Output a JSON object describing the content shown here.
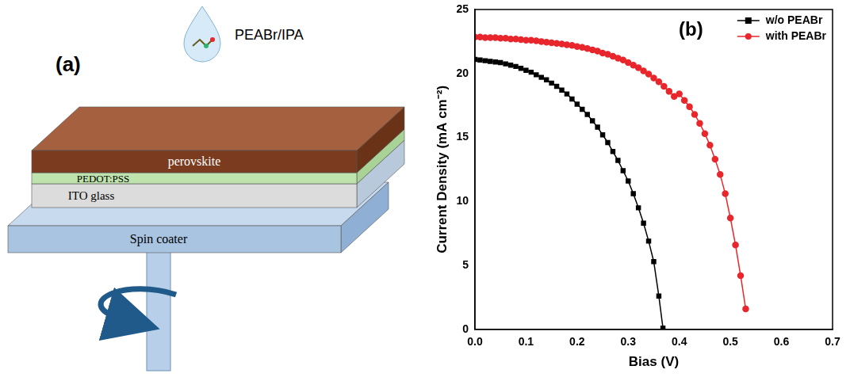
{
  "panel_labels": [
    "(a)",
    "(b)"
  ],
  "diagram": {
    "solution": "PEABr/IPA",
    "layers": [
      "perovskite",
      "PEDOT:PSS",
      "ITO glass"
    ],
    "base": "Spin coater"
  },
  "chart_data": {
    "type": "line",
    "x_label": "Bias (V)",
    "y_label": "Current Density (mA cm⁻²)",
    "xlim": [
      0,
      0.7
    ],
    "xticks": [
      {
        "value": 0,
        "label": "0.0"
      },
      0.1,
      0.2,
      0.3,
      0.4,
      0.5,
      0.6,
      0.7
    ],
    "ylim": [
      0,
      25
    ],
    "yticks": [
      0,
      5,
      10,
      15,
      20,
      25
    ],
    "grid": false,
    "legend": "upper right",
    "series": [
      {
        "name": "w/o PEABr",
        "color": "#000000",
        "marker": "square",
        "line_style": "solid",
        "x": [
          0,
          0.01,
          0.02,
          0.03,
          0.04,
          0.05,
          0.06,
          0.07,
          0.08,
          0.09,
          0.1,
          0.11,
          0.12,
          0.13,
          0.14,
          0.15,
          0.16,
          0.17,
          0.18,
          0.19,
          0.2,
          0.21,
          0.22,
          0.23,
          0.24,
          0.25,
          0.26,
          0.27,
          0.28,
          0.29,
          0.3,
          0.31,
          0.32,
          0.33,
          0.34,
          0.35,
          0.36,
          0.368
        ],
        "values": [
          21.1,
          21.05,
          21.0,
          20.95,
          20.9,
          20.85,
          20.75,
          20.65,
          20.55,
          20.4,
          20.25,
          20.1,
          19.9,
          19.7,
          19.5,
          19.25,
          19.0,
          18.7,
          18.4,
          18.0,
          17.6,
          17.2,
          16.8,
          16.3,
          15.8,
          15.2,
          14.6,
          13.9,
          13.2,
          12.4,
          11.6,
          10.6,
          9.5,
          8.3,
          6.9,
          5.3,
          2.6,
          0.1
        ]
      },
      {
        "name": "with PEABr",
        "color": "#e8262b",
        "marker": "circle",
        "line_style": "solid",
        "x": [
          0,
          0.01,
          0.02,
          0.03,
          0.04,
          0.05,
          0.06,
          0.07,
          0.08,
          0.09,
          0.1,
          0.11,
          0.12,
          0.13,
          0.14,
          0.15,
          0.16,
          0.17,
          0.18,
          0.19,
          0.2,
          0.21,
          0.22,
          0.23,
          0.24,
          0.25,
          0.26,
          0.27,
          0.28,
          0.29,
          0.3,
          0.31,
          0.32,
          0.33,
          0.34,
          0.35,
          0.36,
          0.37,
          0.38,
          0.39,
          0.4,
          0.41,
          0.42,
          0.43,
          0.44,
          0.45,
          0.46,
          0.47,
          0.48,
          0.49,
          0.5,
          0.51,
          0.52,
          0.53
        ],
        "values": [
          22.85,
          22.85,
          22.8,
          22.8,
          22.8,
          22.75,
          22.75,
          22.7,
          22.7,
          22.65,
          22.6,
          22.6,
          22.55,
          22.5,
          22.45,
          22.4,
          22.35,
          22.3,
          22.25,
          22.2,
          22.1,
          22.05,
          21.95,
          21.85,
          21.75,
          21.6,
          21.5,
          21.35,
          21.2,
          21.05,
          20.85,
          20.65,
          20.45,
          20.2,
          19.95,
          19.65,
          19.35,
          19.0,
          18.6,
          18.2,
          18.4,
          17.9,
          17.4,
          16.8,
          16.1,
          15.3,
          14.4,
          13.3,
          12.1,
          10.6,
          8.7,
          6.6,
          4.2,
          1.6
        ]
      }
    ]
  }
}
